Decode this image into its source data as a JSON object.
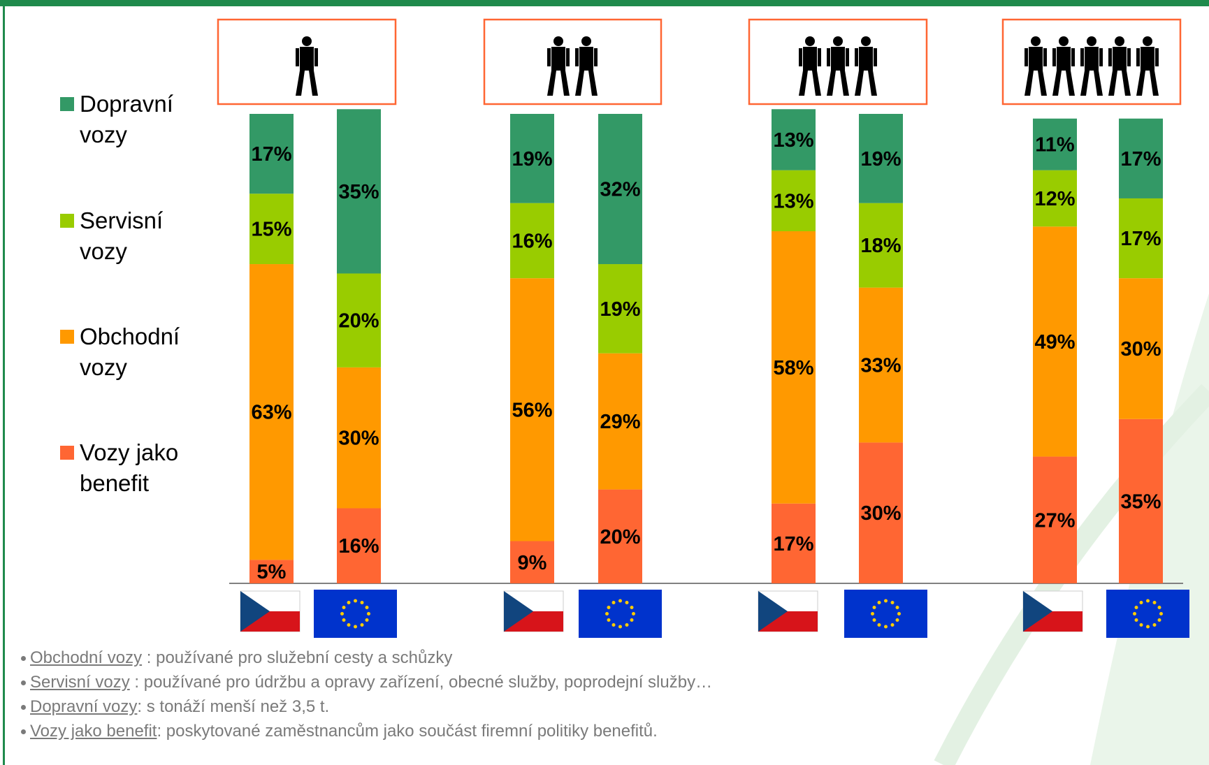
{
  "chart_data": {
    "type": "bar",
    "stacked": true,
    "categories": [
      null,
      null,
      null,
      null,
      null,
      null,
      null,
      null
    ],
    "series": [
      {
        "name": "Vozy jako benefit",
        "color": "#ff6633",
        "values": [
          5,
          16,
          9,
          20,
          17,
          30,
          27,
          35
        ],
        "value_labels": [
          "5%",
          "16%",
          "9%",
          "20%",
          "17%",
          "30%",
          "27%",
          "35%"
        ]
      },
      {
        "name": "Obchodní vozy",
        "color": "#ff9900",
        "values": [
          63,
          30,
          56,
          29,
          58,
          33,
          49,
          30
        ],
        "value_labels": [
          "63%",
          "30%",
          "56%",
          "29%",
          "58%",
          "33%",
          "49%",
          "30%"
        ]
      },
      {
        "name": "Servisní vozy",
        "color": "#99cc00",
        "values": [
          15,
          20,
          16,
          19,
          13,
          18,
          12,
          17
        ],
        "value_labels": [
          "15%",
          "20%",
          "16%",
          "19%",
          "13%",
          "18%",
          "12%",
          "17%"
        ]
      },
      {
        "name": "Dopravní vozy",
        "color": "#339966",
        "values": [
          17,
          35,
          19,
          32,
          13,
          19,
          11,
          17
        ],
        "value_labels": [
          "17%",
          "35%",
          "19%",
          "32%",
          "13%",
          "19%",
          "11%",
          "17%"
        ]
      }
    ]
  },
  "notes": [
    {
      "term": "Obchodní vozy",
      "text": " : používané pro služební cesty a schůzky"
    },
    {
      "term": "Servisní vozy",
      "text": " : používané pro údržbu a opravy zařízení,  obecné služby, poprodejní služby…"
    },
    {
      "term": "Dopravní vozy",
      "text": ": s tonáží menší než 3,5 t."
    },
    {
      "term": "Vozy jako benefit",
      "text": ": poskytované zaměstnancům jako součást firemní politiky benefitů."
    }
  ]
}
